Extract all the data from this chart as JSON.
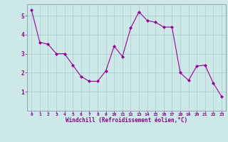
{
  "x": [
    0,
    1,
    2,
    3,
    4,
    5,
    6,
    7,
    8,
    9,
    10,
    11,
    12,
    13,
    14,
    15,
    16,
    17,
    18,
    19,
    20,
    21,
    22,
    23
  ],
  "y": [
    5.3,
    3.6,
    3.5,
    3.0,
    3.0,
    2.4,
    1.8,
    1.55,
    1.55,
    2.1,
    3.4,
    2.85,
    4.35,
    5.2,
    4.75,
    4.65,
    4.4,
    4.4,
    2.0,
    1.6,
    2.35,
    2.4,
    1.45,
    0.75
  ],
  "line_color": "#990099",
  "marker": "D",
  "marker_size": 2,
  "bg_color": "#cce8e8",
  "grid_color": "#aacccc",
  "xlabel": "Windchill (Refroidissement éolien,°C)",
  "xlabel_color": "#880088",
  "tick_color": "#880088",
  "label_color": "#880088",
  "ylim": [
    0,
    5.6
  ],
  "xlim": [
    -0.5,
    23.5
  ],
  "yticks": [
    1,
    2,
    3,
    4,
    5
  ],
  "xticks": [
    0,
    1,
    2,
    3,
    4,
    5,
    6,
    7,
    8,
    9,
    10,
    11,
    12,
    13,
    14,
    15,
    16,
    17,
    18,
    19,
    20,
    21,
    22,
    23
  ]
}
